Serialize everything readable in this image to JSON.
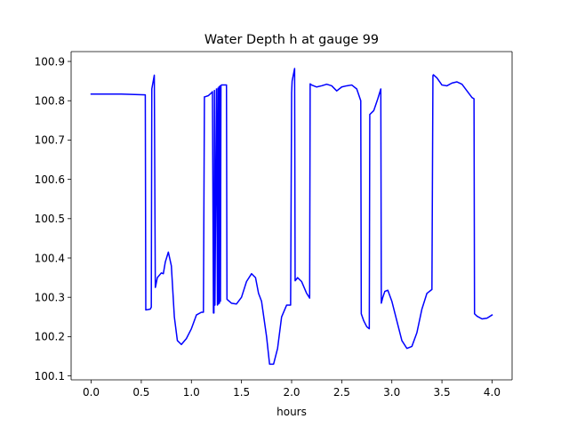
{
  "chart_data": {
    "type": "line",
    "title": "Water Depth h at gauge 99",
    "xlabel": "hours",
    "ylabel": "",
    "xlim": [
      -0.2,
      4.2
    ],
    "ylim": [
      100.09,
      100.925
    ],
    "xticks": [
      0.0,
      0.5,
      1.0,
      1.5,
      2.0,
      2.5,
      3.0,
      3.5,
      4.0
    ],
    "xtick_labels": [
      "0.0",
      "0.5",
      "1.0",
      "1.5",
      "2.0",
      "2.5",
      "3.0",
      "3.5",
      "4.0"
    ],
    "yticks": [
      100.1,
      100.2,
      100.3,
      100.4,
      100.5,
      100.6,
      100.7,
      100.8,
      100.9
    ],
    "ytick_labels": [
      "100.1",
      "100.2",
      "100.3",
      "100.4",
      "100.5",
      "100.6",
      "100.7",
      "100.8",
      "100.9"
    ],
    "grid": false,
    "legend": "none",
    "series": [
      {
        "color": "#0000ff",
        "x": [
          0.0,
          0.3,
          0.54,
          0.545,
          0.59,
          0.6,
          0.605,
          0.63,
          0.64,
          0.645,
          0.66,
          0.7,
          0.72,
          0.74,
          0.77,
          0.8,
          0.83,
          0.86,
          0.9,
          0.95,
          1.0,
          1.05,
          1.1,
          1.12,
          1.13,
          1.135,
          1.17,
          1.2,
          1.21,
          1.22,
          1.225,
          1.23,
          1.235,
          1.25,
          1.26,
          1.265,
          1.27,
          1.275,
          1.28,
          1.285,
          1.29,
          1.295,
          1.3,
          1.35,
          1.355,
          1.4,
          1.45,
          1.5,
          1.55,
          1.6,
          1.64,
          1.67,
          1.7,
          1.75,
          1.78,
          1.82,
          1.86,
          1.9,
          1.95,
          1.99,
          2.0,
          2.005,
          2.03,
          2.035,
          2.06,
          2.1,
          2.15,
          2.18,
          2.185,
          2.2,
          2.25,
          2.3,
          2.35,
          2.4,
          2.45,
          2.5,
          2.55,
          2.6,
          2.65,
          2.69,
          2.695,
          2.72,
          2.75,
          2.775,
          2.78,
          2.82,
          2.86,
          2.89,
          2.895,
          2.91,
          2.93,
          2.96,
          3.0,
          3.05,
          3.1,
          3.15,
          3.2,
          3.25,
          3.3,
          3.35,
          3.4,
          3.41,
          3.415,
          3.45,
          3.5,
          3.55,
          3.6,
          3.65,
          3.7,
          3.75,
          3.8,
          3.82,
          3.825,
          3.85,
          3.9,
          3.95,
          4.0
        ],
        "y": [
          100.817,
          100.817,
          100.815,
          100.268,
          100.27,
          100.275,
          100.83,
          100.865,
          100.325,
          100.33,
          100.35,
          100.362,
          100.36,
          100.39,
          100.415,
          100.38,
          100.25,
          100.19,
          100.18,
          100.195,
          100.22,
          100.255,
          100.262,
          100.262,
          100.81,
          100.81,
          100.813,
          100.82,
          100.823,
          100.26,
          100.26,
          100.826,
          100.28,
          100.83,
          100.28,
          100.832,
          100.283,
          100.835,
          100.285,
          100.838,
          100.29,
          100.838,
          100.84,
          100.84,
          100.295,
          100.285,
          100.283,
          100.3,
          100.34,
          100.36,
          100.35,
          100.31,
          100.29,
          100.2,
          100.13,
          100.13,
          100.17,
          100.25,
          100.28,
          100.28,
          100.82,
          100.85,
          100.882,
          100.342,
          100.35,
          100.34,
          100.31,
          100.298,
          100.843,
          100.84,
          100.835,
          100.838,
          100.842,
          100.838,
          100.825,
          100.835,
          100.838,
          100.84,
          100.83,
          100.8,
          100.258,
          100.24,
          100.225,
          100.22,
          100.765,
          100.775,
          100.805,
          100.83,
          100.285,
          100.3,
          100.315,
          100.318,
          100.29,
          100.24,
          100.19,
          100.17,
          100.175,
          100.21,
          100.27,
          100.31,
          100.32,
          100.864,
          100.866,
          100.858,
          100.84,
          100.838,
          100.845,
          100.848,
          100.842,
          100.825,
          100.808,
          100.805,
          100.258,
          100.252,
          100.245,
          100.247,
          100.255
        ]
      }
    ]
  }
}
